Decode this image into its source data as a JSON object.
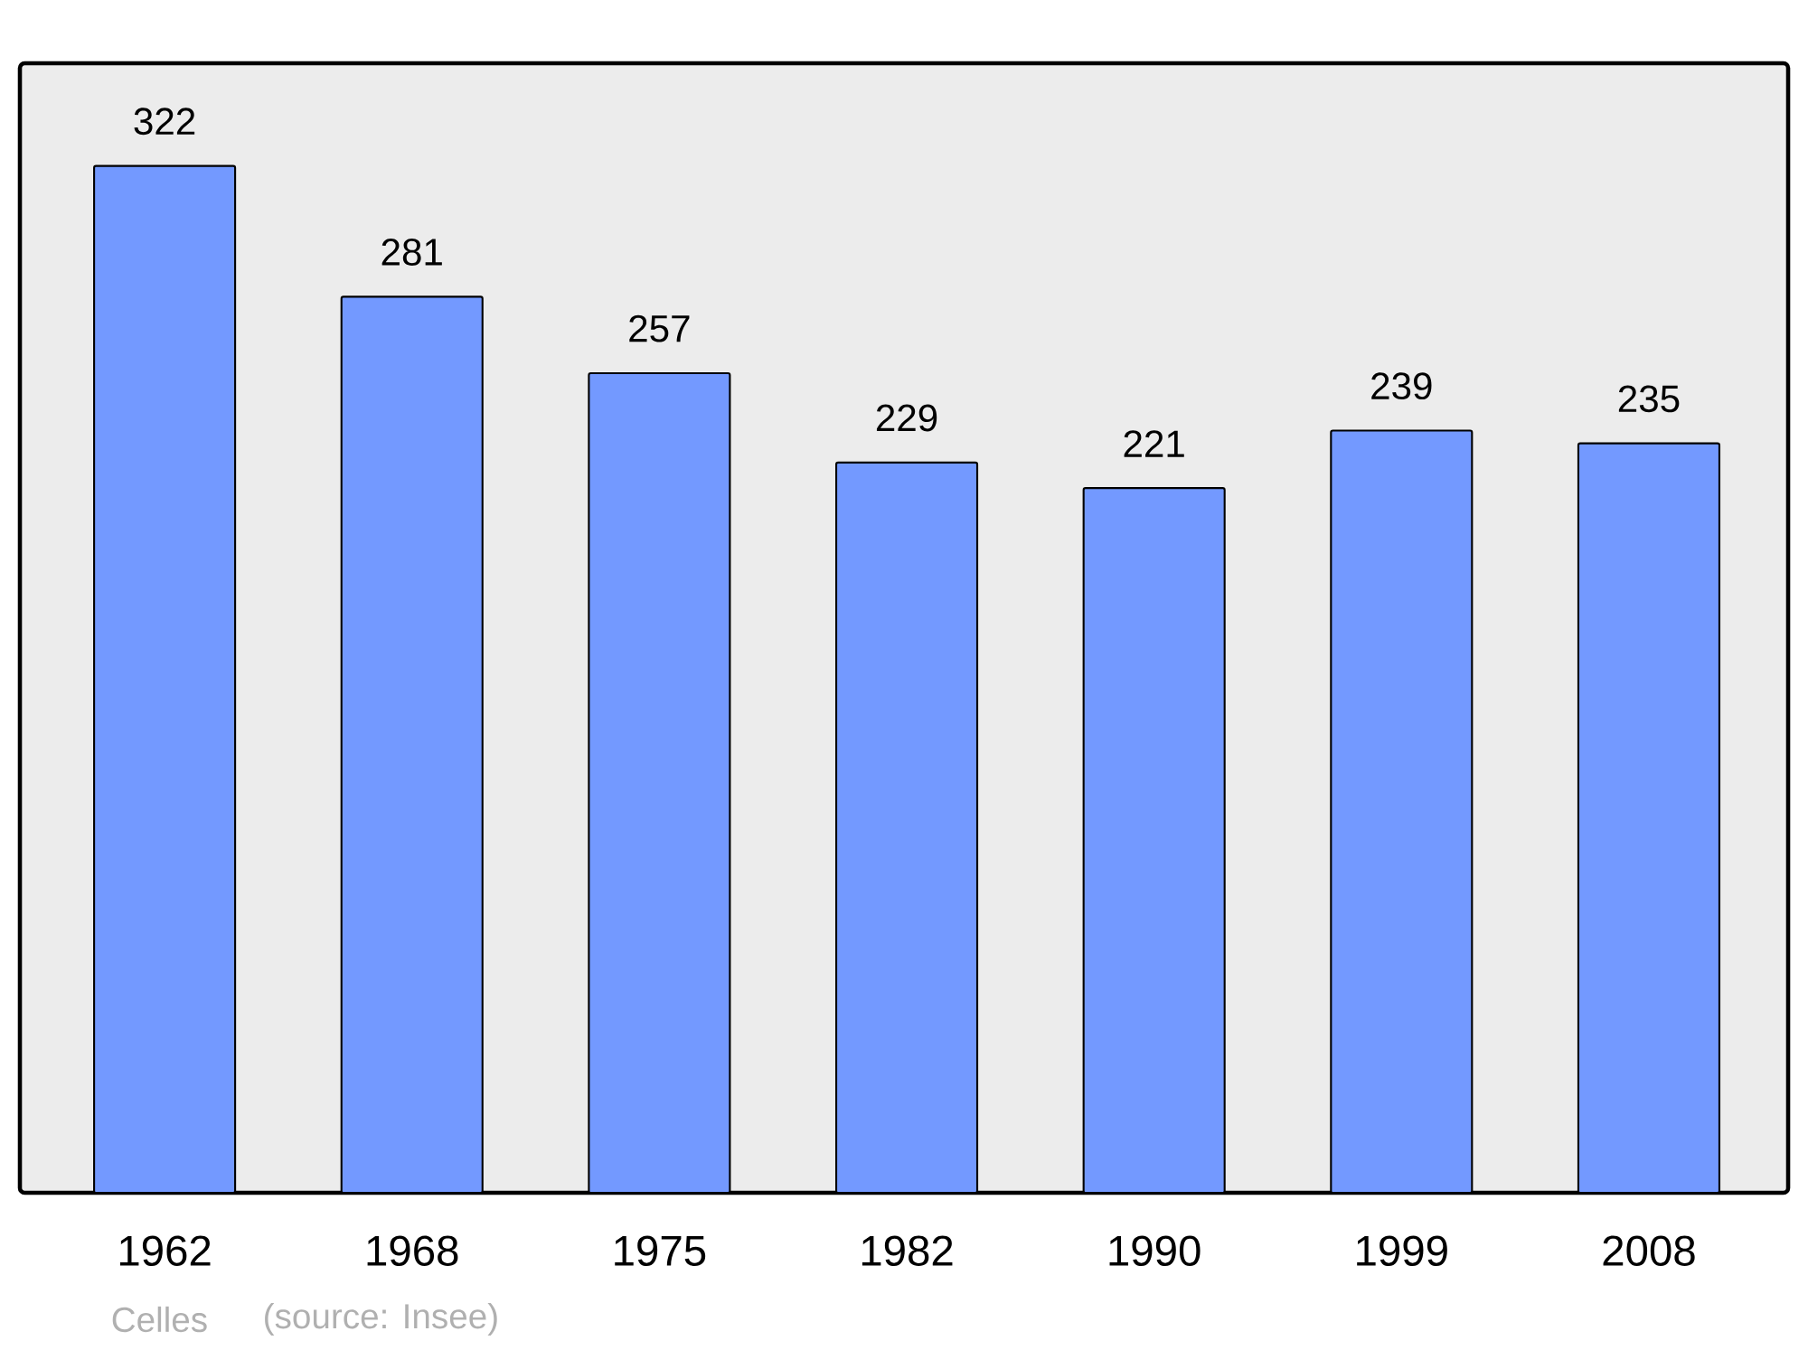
{
  "chart_data": {
    "type": "bar",
    "categories": [
      "1962",
      "1968",
      "1975",
      "1982",
      "1990",
      "1999",
      "2008"
    ],
    "values": [
      322,
      281,
      257,
      229,
      221,
      239,
      235
    ],
    "color": "#7399ff",
    "data_labels": true,
    "annotations": [
      "Celles",
      "(source: Insee)"
    ]
  }
}
